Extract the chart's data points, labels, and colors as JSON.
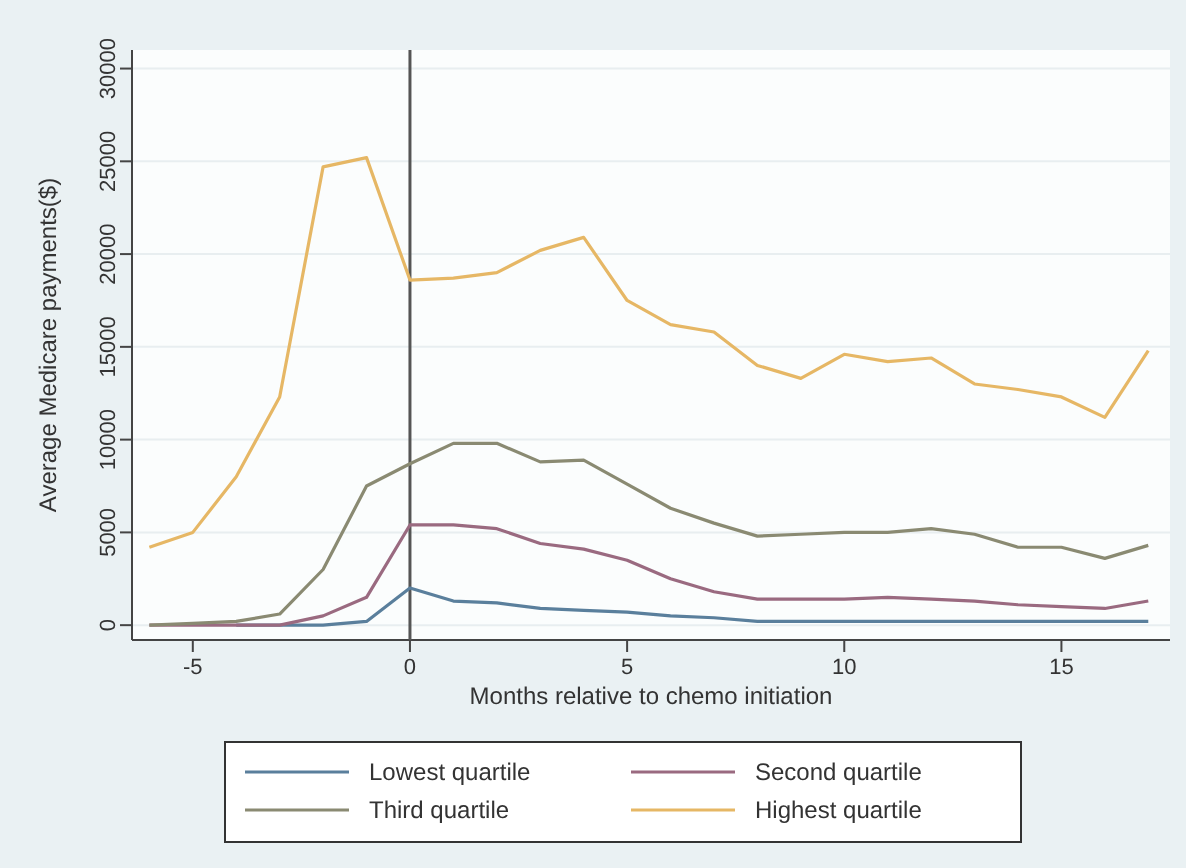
{
  "chart_data": {
    "type": "line",
    "xlabel": "Months relative to chemo initiation",
    "ylabel": "Average Medicare payments($)",
    "x": [
      -6,
      -5,
      -4,
      -3,
      -2,
      -1,
      0,
      1,
      2,
      3,
      4,
      5,
      6,
      7,
      8,
      9,
      10,
      11,
      12,
      13,
      14,
      15,
      16,
      17
    ],
    "series": [
      {
        "name": "Lowest quartile",
        "color": "#5a7f9c",
        "values": [
          null,
          null,
          0,
          0,
          0,
          200,
          2000,
          1300,
          1200,
          900,
          800,
          700,
          500,
          400,
          200,
          200,
          200,
          200,
          200,
          200,
          200,
          200,
          200,
          200
        ]
      },
      {
        "name": "Second quartile",
        "color": "#9a6a80",
        "values": [
          0,
          0,
          0,
          0,
          500,
          1500,
          5400,
          5400,
          5200,
          4400,
          4100,
          3500,
          2500,
          1800,
          1400,
          1400,
          1400,
          1500,
          1400,
          1300,
          1100,
          1000,
          900,
          1300
        ]
      },
      {
        "name": "Third quartile",
        "color": "#8a8a72",
        "values": [
          0,
          100,
          200,
          600,
          3000,
          7500,
          8700,
          9800,
          9800,
          8800,
          8900,
          7600,
          6300,
          5500,
          4800,
          4900,
          5000,
          5000,
          5200,
          4900,
          4200,
          4200,
          3600,
          4300
        ]
      },
      {
        "name": "Highest quartile",
        "color": "#e6b765",
        "values": [
          4200,
          5000,
          8000,
          12300,
          24700,
          25200,
          18600,
          18700,
          19000,
          20200,
          20900,
          17500,
          16200,
          15800,
          14000,
          13300,
          14600,
          14200,
          14400,
          13000,
          12700,
          12300,
          11200,
          14800
        ]
      }
    ],
    "xlim": [
      -6.4,
      17.5
    ],
    "ylim": [
      -800,
      31000
    ],
    "xticks": [
      -5,
      0,
      5,
      10,
      15
    ],
    "yticks": [
      0,
      5000,
      10000,
      15000,
      20000,
      25000,
      30000
    ],
    "ref_lines": [
      {
        "axis": "x",
        "value": 0,
        "color": "#555555"
      }
    ],
    "grid": "y",
    "legend": "bottom",
    "line_style": "solid",
    "marker": "none"
  }
}
